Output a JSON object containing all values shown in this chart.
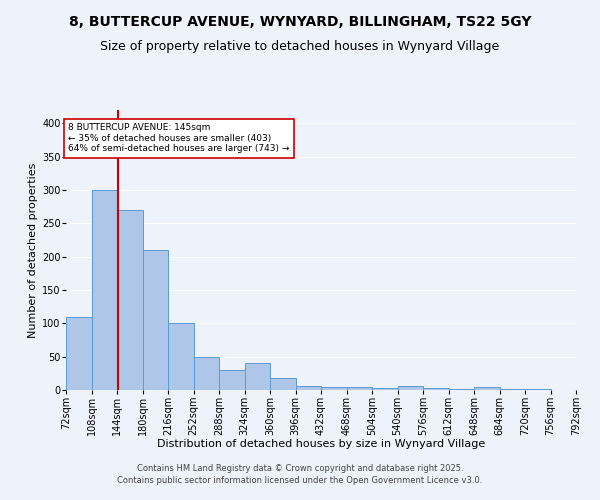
{
  "title": "8, BUTTERCUP AVENUE, WYNYARD, BILLINGHAM, TS22 5GY",
  "subtitle": "Size of property relative to detached houses in Wynyard Village",
  "xlabel": "Distribution of detached houses by size in Wynyard Village",
  "ylabel": "Number of detached properties",
  "footer_line1": "Contains HM Land Registry data © Crown copyright and database right 2025.",
  "footer_line2": "Contains public sector information licensed under the Open Government Licence v3.0.",
  "bins": [
    72,
    108,
    144,
    180,
    216,
    252,
    288,
    324,
    360,
    396,
    432,
    468,
    504,
    540,
    576,
    612,
    648,
    684,
    720,
    756,
    792
  ],
  "bin_labels": [
    "72sqm",
    "108sqm",
    "144sqm",
    "180sqm",
    "216sqm",
    "252sqm",
    "288sqm",
    "324sqm",
    "360sqm",
    "396sqm",
    "432sqm",
    "468sqm",
    "504sqm",
    "540sqm",
    "576sqm",
    "612sqm",
    "648sqm",
    "684sqm",
    "720sqm",
    "756sqm",
    "792sqm"
  ],
  "values": [
    110,
    300,
    270,
    210,
    100,
    50,
    30,
    40,
    18,
    6,
    5,
    5,
    3,
    6,
    3,
    2,
    4,
    2,
    1,
    0,
    4
  ],
  "bar_color": "#aec6e8",
  "bar_edge_color": "#5b9bd5",
  "property_size": 145,
  "vline_color": "#cc0000",
  "vline_label": "8 BUTTERCUP AVENUE: 145sqm",
  "annotation_smaller": "← 35% of detached houses are smaller (403)",
  "annotation_larger": "64% of semi-detached houses are larger (743) →",
  "annotation_box_color": "#cc0000",
  "ylim": [
    0,
    420
  ],
  "yticks": [
    0,
    50,
    100,
    150,
    200,
    250,
    300,
    350,
    400
  ],
  "background_color": "#eef2fa",
  "grid_color": "#ffffff",
  "title_fontsize": 10,
  "subtitle_fontsize": 9,
  "axis_fontsize": 8,
  "tick_fontsize": 7,
  "footer_fontsize": 6
}
